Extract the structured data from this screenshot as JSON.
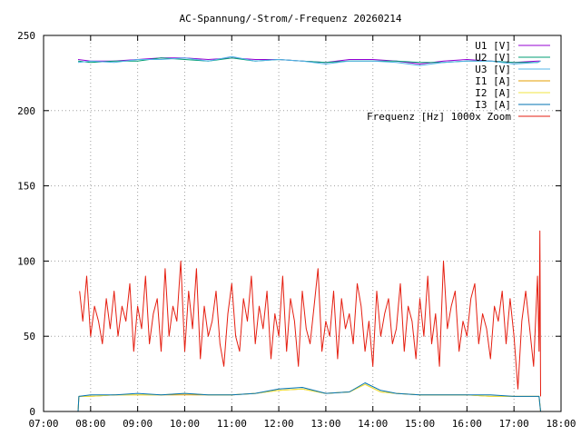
{
  "chart_data": {
    "type": "line",
    "title": "AC-Spannung/-Strom/-Frequenz 20260214",
    "xlabel": "",
    "ylabel": "",
    "x_ticks": [
      "07:00",
      "08:00",
      "09:00",
      "10:00",
      "11:00",
      "12:00",
      "13:00",
      "14:00",
      "15:00",
      "16:00",
      "17:00",
      "18:00"
    ],
    "xlim": [
      "07:00",
      "18:00"
    ],
    "y_ticks": [
      0,
      50,
      100,
      150,
      200,
      250
    ],
    "ylim": [
      0,
      250
    ],
    "grid": true,
    "legend_position": "top-right",
    "series": [
      {
        "name": "U1 [V]",
        "color": "#9400d3",
        "x": [
          "07:44",
          "08:00",
          "08:30",
          "09:00",
          "09:30",
          "10:00",
          "10:30",
          "11:00",
          "11:30",
          "12:00",
          "12:30",
          "13:00",
          "13:30",
          "14:00",
          "14:30",
          "15:00",
          "15:30",
          "16:00",
          "16:30",
          "17:00",
          "17:30",
          "17:34"
        ],
        "values": [
          234,
          233,
          233,
          234,
          235,
          235,
          234,
          235,
          234,
          234,
          233,
          232,
          234,
          234,
          233,
          231,
          233,
          234,
          233,
          232,
          233,
          233
        ]
      },
      {
        "name": "U2 [V]",
        "color": "#009e73",
        "x": [
          "07:44",
          "08:00",
          "08:30",
          "09:00",
          "09:30",
          "10:00",
          "10:30",
          "11:00",
          "11:30",
          "12:00",
          "12:30",
          "13:00",
          "13:30",
          "14:00",
          "14:30",
          "15:00",
          "15:30",
          "16:00",
          "16:30",
          "17:00",
          "17:30",
          "17:34"
        ],
        "values": [
          233,
          232,
          233,
          233,
          235,
          234,
          233,
          235,
          233,
          234,
          233,
          232,
          233,
          233,
          233,
          232,
          232,
          233,
          233,
          232,
          232,
          233
        ]
      },
      {
        "name": "U3 [V]",
        "color": "#56b4e9",
        "x": [
          "07:44",
          "08:00",
          "08:30",
          "09:00",
          "09:30",
          "10:00",
          "10:30",
          "11:00",
          "11:30",
          "12:00",
          "12:30",
          "13:00",
          "13:30",
          "14:00",
          "14:30",
          "15:00",
          "15:30",
          "16:00",
          "16:30",
          "17:00",
          "17:30",
          "17:34"
        ],
        "values": [
          232,
          233,
          232,
          234,
          234,
          235,
          233,
          236,
          233,
          234,
          233,
          231,
          233,
          233,
          232,
          230,
          232,
          233,
          233,
          231,
          232,
          233
        ]
      },
      {
        "name": "I1 [A]",
        "color": "#e69f00",
        "x": [
          "07:44",
          "07:45",
          "08:00",
          "08:30",
          "09:00",
          "09:30",
          "10:00",
          "10:30",
          "11:00",
          "11:30",
          "12:00",
          "12:30",
          "13:00",
          "13:30",
          "13:50",
          "14:10",
          "14:30",
          "15:00",
          "15:30",
          "16:00",
          "16:30",
          "17:00",
          "17:32",
          "17:34"
        ],
        "values": [
          0,
          10,
          10,
          11,
          11,
          11,
          11,
          11,
          11,
          12,
          14,
          15,
          12,
          13,
          18,
          13,
          12,
          11,
          11,
          11,
          10,
          10,
          10,
          0
        ]
      },
      {
        "name": "I2 [A]",
        "color": "#f0e442",
        "x": [
          "07:44",
          "07:45",
          "08:00",
          "08:30",
          "09:00",
          "09:30",
          "10:00",
          "10:30",
          "11:00",
          "11:30",
          "12:00",
          "12:30",
          "13:00",
          "13:30",
          "13:50",
          "14:10",
          "14:30",
          "15:00",
          "15:30",
          "16:00",
          "16:30",
          "17:00",
          "17:32",
          "17:34"
        ],
        "values": [
          0,
          10,
          10,
          11,
          11,
          11,
          12,
          11,
          11,
          12,
          14,
          15,
          12,
          13,
          18,
          13,
          12,
          11,
          11,
          11,
          10,
          10,
          10,
          0
        ]
      },
      {
        "name": "I3 [A]",
        "color": "#0072b2",
        "x": [
          "07:44",
          "07:45",
          "08:00",
          "08:30",
          "09:00",
          "09:30",
          "10:00",
          "10:30",
          "11:00",
          "11:30",
          "12:00",
          "12:30",
          "13:00",
          "13:30",
          "13:50",
          "14:10",
          "14:30",
          "15:00",
          "15:30",
          "16:00",
          "16:30",
          "17:00",
          "17:32",
          "17:34"
        ],
        "values": [
          0,
          10,
          11,
          11,
          12,
          11,
          12,
          11,
          11,
          12,
          15,
          16,
          12,
          13,
          19,
          14,
          12,
          11,
          11,
          11,
          11,
          10,
          10,
          0
        ]
      },
      {
        "name": "Frequenz [Hz] 1000x Zoom",
        "color": "#e51e10",
        "x": [
          "07:46",
          "07:50",
          "07:55",
          "08:00",
          "08:05",
          "08:10",
          "08:15",
          "08:20",
          "08:25",
          "08:30",
          "08:35",
          "08:40",
          "08:45",
          "08:50",
          "08:55",
          "09:00",
          "09:05",
          "09:10",
          "09:15",
          "09:20",
          "09:25",
          "09:30",
          "09:35",
          "09:40",
          "09:45",
          "09:50",
          "09:55",
          "10:00",
          "10:05",
          "10:10",
          "10:15",
          "10:20",
          "10:25",
          "10:30",
          "10:35",
          "10:40",
          "10:45",
          "10:50",
          "10:55",
          "11:00",
          "11:05",
          "11:10",
          "11:15",
          "11:20",
          "11:25",
          "11:30",
          "11:35",
          "11:40",
          "11:45",
          "11:50",
          "11:55",
          "12:00",
          "12:05",
          "12:10",
          "12:15",
          "12:20",
          "12:25",
          "12:30",
          "12:35",
          "12:40",
          "12:45",
          "12:50",
          "12:55",
          "13:00",
          "13:05",
          "13:10",
          "13:15",
          "13:20",
          "13:25",
          "13:30",
          "13:35",
          "13:40",
          "13:45",
          "13:50",
          "13:55",
          "14:00",
          "14:05",
          "14:10",
          "14:15",
          "14:20",
          "14:25",
          "14:30",
          "14:35",
          "14:40",
          "14:45",
          "14:50",
          "14:55",
          "15:00",
          "15:05",
          "15:10",
          "15:15",
          "15:20",
          "15:25",
          "15:30",
          "15:35",
          "15:40",
          "15:45",
          "15:50",
          "15:55",
          "16:00",
          "16:05",
          "16:10",
          "16:15",
          "16:20",
          "16:25",
          "16:30",
          "16:35",
          "16:40",
          "16:45",
          "16:50",
          "16:55",
          "17:00",
          "17:05",
          "17:10",
          "17:15",
          "17:20",
          "17:25",
          "17:30",
          "17:32",
          "17:33",
          "17:34"
        ],
        "values": [
          80,
          60,
          90,
          50,
          70,
          60,
          45,
          75,
          55,
          80,
          50,
          70,
          60,
          85,
          40,
          70,
          55,
          90,
          45,
          65,
          75,
          40,
          95,
          50,
          70,
          60,
          100,
          40,
          80,
          55,
          95,
          35,
          70,
          50,
          60,
          80,
          45,
          30,
          65,
          85,
          50,
          40,
          75,
          60,
          90,
          45,
          70,
          55,
          80,
          35,
          65,
          50,
          90,
          40,
          75,
          60,
          30,
          80,
          55,
          45,
          70,
          95,
          40,
          60,
          50,
          80,
          35,
          75,
          55,
          65,
          45,
          85,
          70,
          40,
          60,
          30,
          80,
          50,
          65,
          75,
          45,
          55,
          85,
          40,
          70,
          60,
          35,
          75,
          50,
          90,
          45,
          65,
          30,
          100,
          55,
          70,
          80,
          40,
          60,
          50,
          75,
          85,
          45,
          65,
          55,
          35,
          70,
          60,
          80,
          45,
          75,
          50,
          15,
          60,
          80,
          55,
          30,
          90,
          40,
          120,
          10
        ]
      }
    ]
  }
}
